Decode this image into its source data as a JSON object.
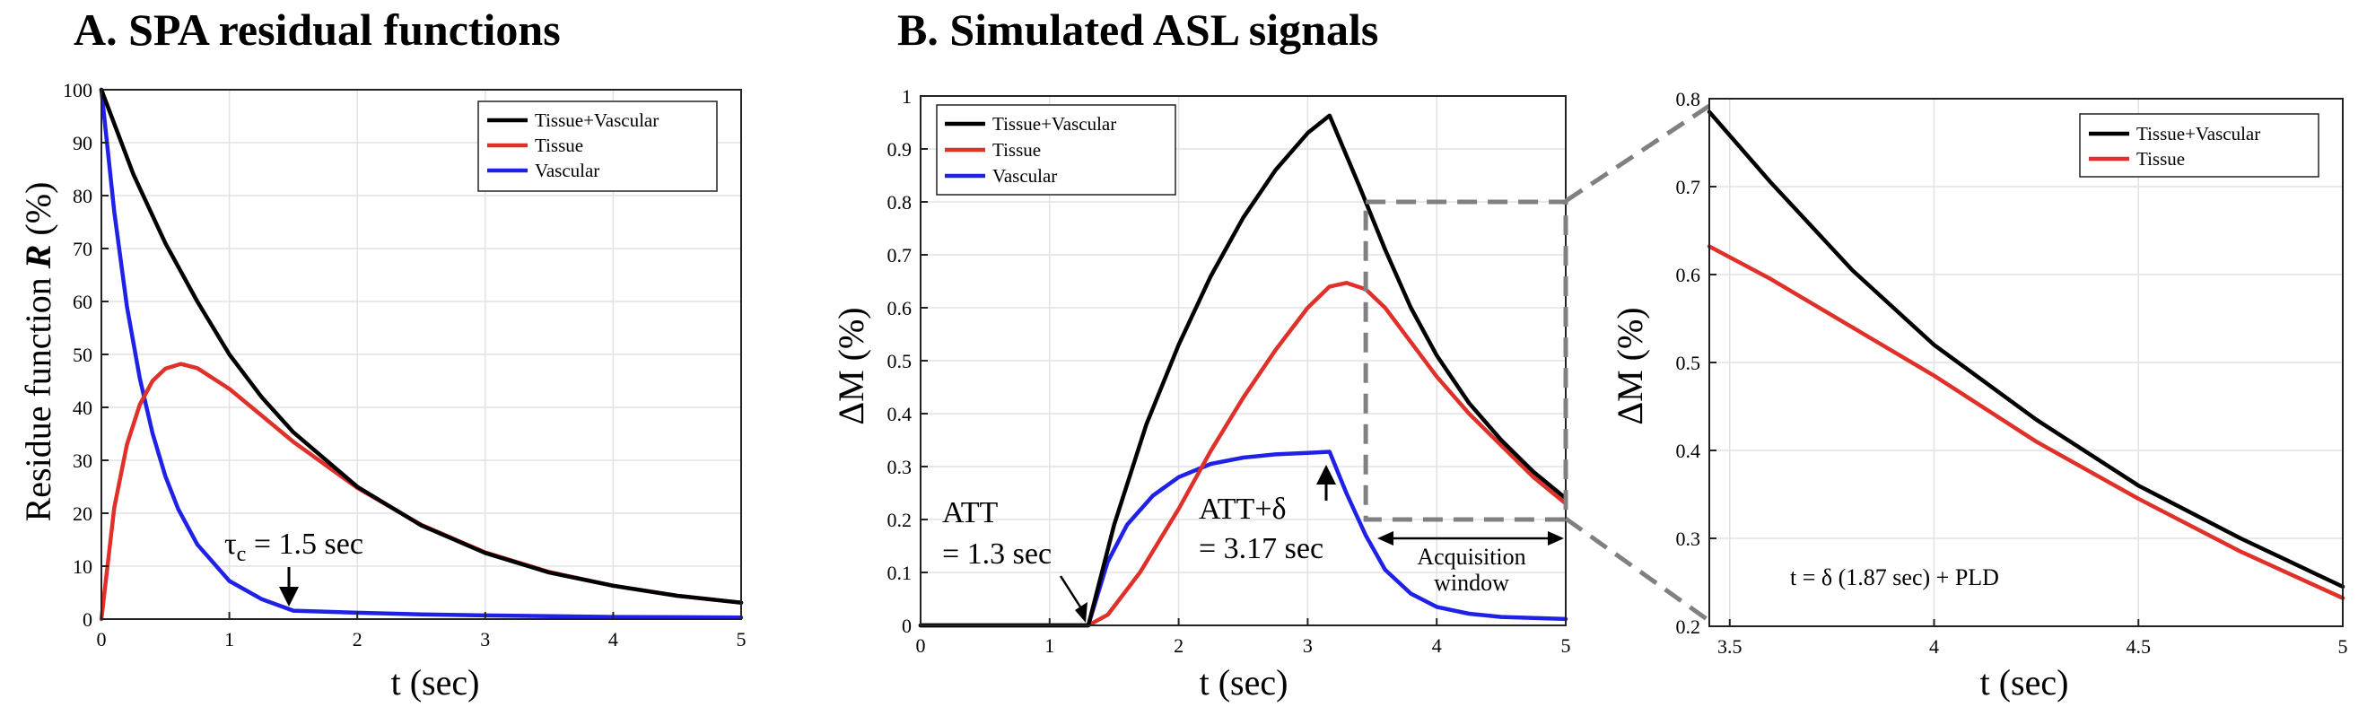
{
  "colors": {
    "combined": "#000000",
    "tissue": "#e0302a",
    "vascular": "#1f22e6",
    "box": "#808080"
  },
  "chart_data": [
    {
      "id": "A",
      "type": "line",
      "title": "A. SPA residual functions",
      "xlabel": "t (sec)",
      "ylabel_prefix": "Residue function ",
      "ylabel_symbol": "R",
      "ylabel_suffix": " (%)",
      "xlim": [
        0,
        5
      ],
      "ylim": [
        0,
        100
      ],
      "xticks": [
        "0",
        "1",
        "2",
        "3",
        "4",
        "5"
      ],
      "yticks": [
        "0",
        "10",
        "20",
        "30",
        "40",
        "50",
        "60",
        "70",
        "80",
        "90",
        "100"
      ],
      "grid": true,
      "legend_position": "top-right",
      "series": [
        {
          "name": "Tissue+Vascular",
          "color_key": "combined",
          "x": [
            0,
            0.25,
            0.5,
            0.75,
            1,
            1.25,
            1.5,
            2,
            2.5,
            3,
            3.5,
            4,
            4.5,
            5
          ],
          "y": [
            100,
            84,
            71,
            60,
            50,
            42,
            35.3,
            25,
            17.7,
            12.5,
            8.8,
            6.3,
            4.4,
            3.1
          ]
        },
        {
          "name": "Tissue",
          "color_key": "tissue",
          "x": [
            0,
            0.1,
            0.2,
            0.3,
            0.4,
            0.5,
            0.62,
            0.75,
            1,
            1.25,
            1.5,
            2,
            2.5,
            3,
            3.5,
            4,
            4.5,
            5
          ],
          "y": [
            0,
            21,
            33,
            40.5,
            45,
            47.3,
            48.2,
            47.4,
            43.5,
            38.5,
            33.5,
            24.8,
            17.8,
            12.6,
            8.9,
            6.3,
            4.4,
            3.1
          ]
        },
        {
          "name": "Vascular",
          "color_key": "vascular",
          "x": [
            0,
            0.1,
            0.2,
            0.3,
            0.4,
            0.5,
            0.6,
            0.75,
            1,
            1.25,
            1.5,
            2,
            2.5,
            3,
            4,
            5
          ],
          "y": [
            100,
            77,
            59,
            45.5,
            35.1,
            27,
            20.8,
            14.1,
            7.2,
            3.8,
            1.6,
            1.2,
            0.9,
            0.7,
            0.4,
            0.3
          ]
        }
      ],
      "annotations": [
        {
          "kind": "tau",
          "symbol": "τ",
          "subscript": "c",
          "text": " = 1.5 sec",
          "x": 1.5,
          "y": 1.6
        }
      ]
    },
    {
      "id": "B",
      "type": "line",
      "title": "B. Simulated ASL signals",
      "xlabel": "t (sec)",
      "ylabel": "ΔM (%)",
      "xlim": [
        0,
        5
      ],
      "ylim": [
        0,
        1
      ],
      "xticks": [
        "0",
        "1",
        "2",
        "3",
        "4",
        "5"
      ],
      "yticks": [
        "0",
        "0.1",
        "0.2",
        "0.3",
        "0.4",
        "0.5",
        "0.6",
        "0.7",
        "0.8",
        "0.9",
        "1"
      ],
      "grid": true,
      "legend_position": "top-left",
      "series": [
        {
          "name": "Tissue+Vascular",
          "color_key": "combined",
          "x": [
            0,
            1.3,
            1.5,
            1.75,
            2,
            2.25,
            2.5,
            2.75,
            3,
            3.17,
            3.4,
            3.6,
            3.8,
            4,
            4.25,
            4.5,
            4.75,
            5
          ],
          "y": [
            0,
            0,
            0.19,
            0.38,
            0.53,
            0.66,
            0.77,
            0.86,
            0.93,
            0.963,
            0.83,
            0.71,
            0.6,
            0.51,
            0.42,
            0.35,
            0.29,
            0.24
          ]
        },
        {
          "name": "Tissue",
          "color_key": "tissue",
          "x": [
            0,
            1.3,
            1.45,
            1.7,
            2,
            2.25,
            2.5,
            2.75,
            3,
            3.17,
            3.3,
            3.45,
            3.6,
            3.8,
            4,
            4.25,
            4.5,
            4.75,
            5
          ],
          "y": [
            0,
            0,
            0.02,
            0.1,
            0.22,
            0.33,
            0.43,
            0.52,
            0.6,
            0.64,
            0.647,
            0.635,
            0.6,
            0.535,
            0.47,
            0.4,
            0.34,
            0.28,
            0.23
          ]
        },
        {
          "name": "Vascular",
          "color_key": "vascular",
          "x": [
            0,
            1.3,
            1.45,
            1.6,
            1.8,
            2,
            2.25,
            2.5,
            2.75,
            3,
            3.17,
            3.3,
            3.45,
            3.6,
            3.8,
            4,
            4.25,
            4.5,
            5
          ],
          "y": [
            0,
            0,
            0.12,
            0.19,
            0.245,
            0.28,
            0.305,
            0.317,
            0.323,
            0.326,
            0.328,
            0.25,
            0.17,
            0.105,
            0.06,
            0.035,
            0.022,
            0.016,
            0.012
          ]
        }
      ],
      "annotations": [
        {
          "kind": "att",
          "line1": "ATT",
          "line2": "= 1.3 sec",
          "x": 1.3,
          "y": 0
        },
        {
          "kind": "att_delta",
          "line1": "ATT+δ",
          "line2": "= 3.17 sec",
          "x": 3.17,
          "y": 0.33
        },
        {
          "kind": "acq_window",
          "line1": "Acquisition",
          "line2": "window",
          "x0": 3.45,
          "x1": 5,
          "y0": 0.2,
          "y1": 0.8
        }
      ]
    },
    {
      "id": "C",
      "type": "line",
      "title": "",
      "xlabel": "t (sec)",
      "ylabel": "ΔM (%)",
      "xlim": [
        3.45,
        5
      ],
      "ylim": [
        0.2,
        0.8
      ],
      "xticks": [
        "3.5",
        "4",
        "4.5",
        "5"
      ],
      "yticks": [
        "0.2",
        "0.3",
        "0.4",
        "0.5",
        "0.6",
        "0.7",
        "0.8"
      ],
      "grid": true,
      "legend_position": "top-right",
      "series": [
        {
          "name": "Tissue+Vascular",
          "color_key": "combined",
          "x": [
            3.45,
            3.6,
            3.8,
            4,
            4.25,
            4.5,
            4.75,
            5
          ],
          "y": [
            0.785,
            0.705,
            0.605,
            0.52,
            0.435,
            0.36,
            0.3,
            0.245
          ]
        },
        {
          "name": "Tissue",
          "color_key": "tissue",
          "x": [
            3.45,
            3.6,
            3.8,
            4,
            4.25,
            4.5,
            4.75,
            5
          ],
          "y": [
            0.632,
            0.595,
            0.54,
            0.485,
            0.41,
            0.345,
            0.285,
            0.232
          ]
        }
      ],
      "annotations": [
        {
          "kind": "formula",
          "text": "t = δ (1.87 sec) + PLD"
        }
      ]
    }
  ]
}
